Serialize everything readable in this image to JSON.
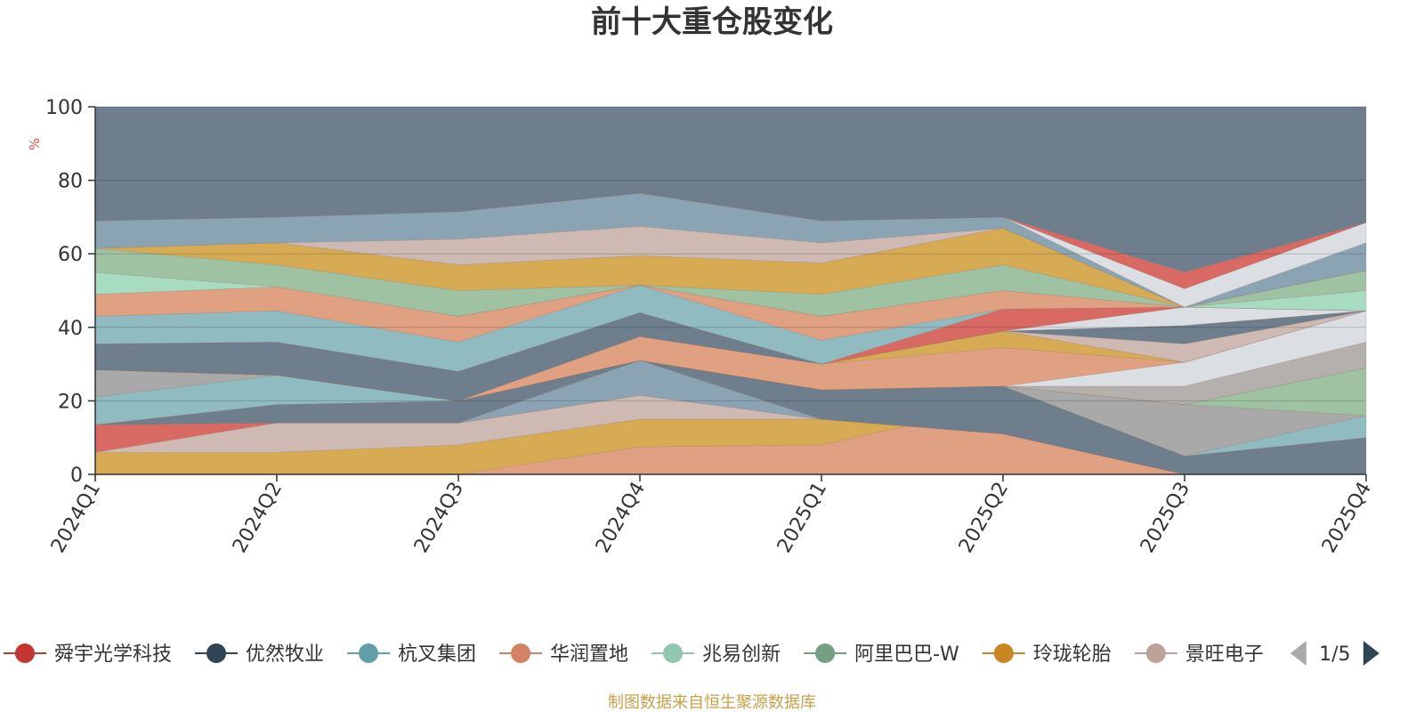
{
  "chart_data": {
    "type": "area",
    "title": "前十大重仓股变化",
    "xlabel": "",
    "ylabel": "%",
    "ylim": [
      0,
      100
    ],
    "yticks": [
      0,
      20,
      40,
      60,
      80,
      100
    ],
    "grid": true,
    "legend_position": "bottom",
    "categories": [
      "2024Q1",
      "2024Q2",
      "2024Q3",
      "2024Q4",
      "2025Q1",
      "2025Q2",
      "2025Q3",
      "2025Q4"
    ],
    "layers": [
      {
        "name": "L1",
        "color": "#e0a182",
        "values": [
          0,
          0,
          0,
          7.5,
          8,
          19,
          5,
          0
        ]
      },
      {
        "name": "L2",
        "color": "#d7ab54",
        "values": [
          6,
          6,
          8,
          15,
          15,
          19,
          5,
          0
        ]
      },
      {
        "name": "L3",
        "color": "#cfb9b3",
        "values": [
          6,
          14,
          14,
          21.5,
          15,
          19,
          5,
          0
        ]
      },
      {
        "name": "L4",
        "color": "#d96a63",
        "values": [
          13.5,
          14,
          14,
          21.5,
          15,
          11,
          0,
          0
        ]
      },
      {
        "name": "L5",
        "color": "#8aa4b4",
        "values": [
          13.5,
          14,
          14,
          31,
          15,
          11,
          0,
          0
        ]
      },
      {
        "name": "L6",
        "color": "#6e7e8c",
        "values": [
          13.5,
          19,
          20,
          31,
          23,
          24,
          5,
          10
        ]
      },
      {
        "name": "L7",
        "color": "#8fbbc1",
        "values": [
          21,
          27,
          20,
          31,
          23,
          24,
          5,
          16
        ]
      },
      {
        "name": "L8",
        "color": "#a9a9a9",
        "values": [
          28.5,
          27,
          20,
          31,
          23,
          24,
          19,
          16
        ]
      },
      {
        "name": "L9",
        "color": "#9fc2a2",
        "values": [
          28.5,
          27,
          20,
          31,
          23,
          24,
          19,
          29
        ]
      },
      {
        "name": "L10",
        "color": "#a8dcc0",
        "values": [
          28.5,
          27,
          20,
          31,
          23,
          24,
          19,
          29
        ]
      },
      {
        "name": "L11",
        "color": "#b3b0ad",
        "values": [
          28.5,
          27,
          20,
          31,
          23,
          24,
          24,
          36
        ]
      },
      {
        "name": "L12",
        "color": "#dbdfe3",
        "values": [
          28.5,
          27,
          20,
          31,
          23,
          24,
          30.5,
          44.5
        ]
      },
      {
        "name": "L13",
        "color": "#e0a182",
        "values": [
          28.5,
          27,
          20,
          37.5,
          30,
          34.5,
          30.5,
          44.5
        ]
      },
      {
        "name": "L14",
        "color": "#d7ab54",
        "values": [
          28.5,
          27,
          20,
          37.5,
          30,
          39,
          30.5,
          44.5
        ]
      },
      {
        "name": "L15",
        "color": "#cfb9b3",
        "values": [
          28.5,
          27,
          20,
          37.5,
          30,
          39,
          35.5,
          44.5
        ]
      },
      {
        "name": "L16",
        "color": "#6e7e8c",
        "values": [
          35.5,
          36,
          28,
          44,
          30,
          39,
          40.5,
          44.5
        ]
      },
      {
        "name": "L17",
        "color": "#dbdfe3",
        "values": [
          35.5,
          36,
          28,
          44,
          30,
          39,
          45.5,
          44.5
        ]
      },
      {
        "name": "L18",
        "color": "#d96a63",
        "values": [
          35.5,
          36,
          28,
          44,
          30,
          45,
          45.5,
          44.5
        ]
      },
      {
        "name": "L19",
        "color": "#8fbbc1",
        "values": [
          43,
          44.5,
          36,
          51.5,
          36.5,
          45,
          45.5,
          44.5
        ]
      },
      {
        "name": "L20",
        "color": "#e0a182",
        "values": [
          49,
          51,
          43,
          51.5,
          43,
          50,
          45.5,
          44.5
        ]
      },
      {
        "name": "L21",
        "color": "#a8dcc0",
        "values": [
          55,
          51,
          43,
          51.5,
          43,
          50,
          45.5,
          50
        ]
      },
      {
        "name": "L22",
        "color": "#9fc2a2",
        "values": [
          61.5,
          57,
          50,
          51.5,
          49,
          57,
          45.5,
          55.5
        ]
      },
      {
        "name": "L23",
        "color": "#d7ab54",
        "values": [
          61.5,
          63,
          57,
          59.5,
          57.5,
          67,
          45.5,
          55.5
        ]
      },
      {
        "name": "L24",
        "color": "#cfb9b3",
        "values": [
          61.5,
          63,
          64,
          67.5,
          63,
          67,
          45.5,
          55.5
        ]
      },
      {
        "name": "L25",
        "color": "#8aa4b4",
        "values": [
          69,
          70,
          71.5,
          76.5,
          69,
          70,
          45.5,
          63
        ]
      },
      {
        "name": "L26",
        "color": "#dbdfe3",
        "values": [
          69,
          70,
          71.5,
          76.5,
          69,
          70,
          50.5,
          68.5
        ]
      },
      {
        "name": "L27",
        "color": "#d96a63",
        "values": [
          69,
          70,
          71.5,
          76.5,
          69,
          70,
          55,
          68.5
        ]
      },
      {
        "name": "L28",
        "color": "#6e7e8c",
        "values": [
          100,
          100,
          100,
          100,
          100,
          100,
          100,
          100
        ]
      }
    ],
    "legend": {
      "items": [
        {
          "name": "舜宇光学科技",
          "color": "#c23531"
        },
        {
          "name": "优然牧业",
          "color": "#2f4554"
        },
        {
          "name": "杭叉集团",
          "color": "#61a0a8"
        },
        {
          "name": "华润置地",
          "color": "#d48265"
        },
        {
          "name": "兆易创新",
          "color": "#91c7ae"
        },
        {
          "name": "阿里巴巴-W",
          "color": "#749f83"
        },
        {
          "name": "玲珑轮胎",
          "color": "#ca8622"
        },
        {
          "name": "景旺电子",
          "color": "#bda29a"
        }
      ],
      "page_indicator": "1/5",
      "prev_color": "#aaaaaa",
      "next_color": "#2f4554"
    },
    "source_note": "制图数据来自恒生聚源数据库",
    "source_color": "#c8a04a",
    "ylabel_color": "#d94e4e"
  }
}
